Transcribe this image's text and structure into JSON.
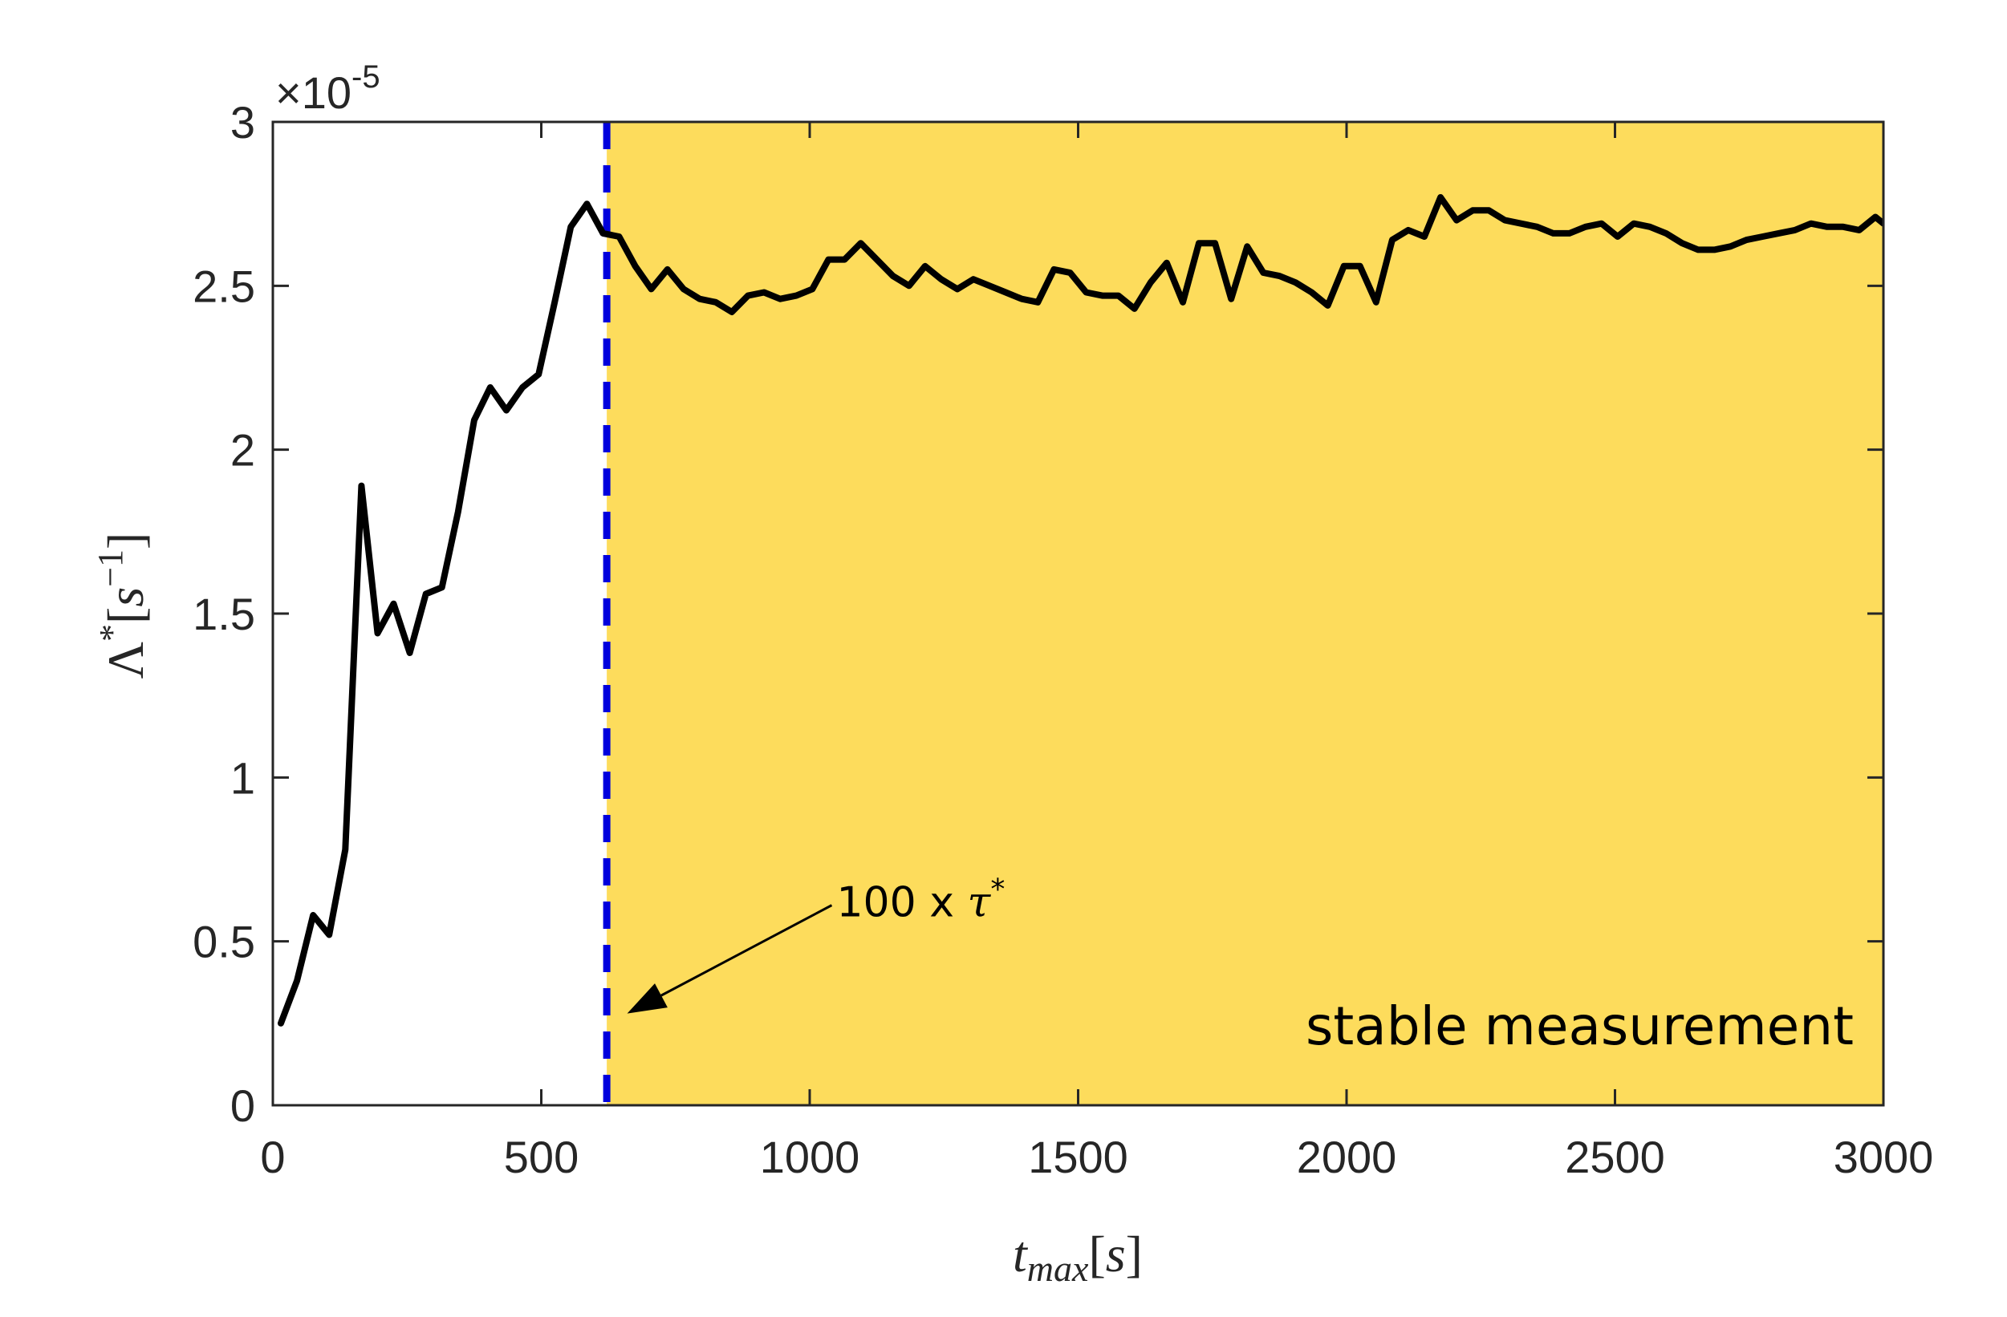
{
  "chart_data": {
    "type": "line",
    "title": "",
    "xlabel": "t_max[s]",
    "ylabel": "Λ*[s⁻¹]",
    "xlim": [
      0,
      3000
    ],
    "ylim": [
      0,
      3
    ],
    "y_multiplier_label": "×10",
    "y_multiplier_exponent": "-5",
    "x_ticks": [
      0,
      500,
      1000,
      1500,
      2000,
      2500,
      3000
    ],
    "x_tick_labels": [
      "0",
      "500",
      "1000",
      "1500",
      "2000",
      "2500",
      "3000"
    ],
    "y_ticks": [
      0,
      0.5,
      1,
      1.5,
      2,
      2.5,
      3
    ],
    "y_tick_labels": [
      "0",
      "0.5",
      "1",
      "1.5",
      "2",
      "2.5",
      "3"
    ],
    "grid": false,
    "shaded_region": {
      "x_start": 622,
      "x_end": 3000,
      "color": "#FDDC5C",
      "label": "stable measurement"
    },
    "vertical_line": {
      "x": 622,
      "color": "#0000DD",
      "style": "dashed"
    },
    "annotation": {
      "text_prefix": "100 x ",
      "text_symbol": "τ",
      "text_superscript": "*",
      "arrow_to_x": 660,
      "arrow_to_y": 0.28,
      "text_x": 1050,
      "text_y": 0.62
    },
    "series": [
      {
        "name": "Lambda",
        "color": "#000000",
        "x": [
          15,
          45,
          75,
          105,
          135,
          165,
          195,
          225,
          255,
          285,
          315,
          345,
          375,
          405,
          435,
          465,
          495,
          525,
          555,
          585,
          615,
          645,
          675,
          705,
          735,
          765,
          795,
          825,
          855,
          885,
          915,
          945,
          975,
          1005,
          1035,
          1065,
          1095,
          1125,
          1155,
          1185,
          1215,
          1245,
          1275,
          1305,
          1335,
          1365,
          1395,
          1425,
          1455,
          1485,
          1515,
          1545,
          1575,
          1605,
          1635,
          1665,
          1695,
          1725,
          1755,
          1785,
          1815,
          1845,
          1875,
          1905,
          1935,
          1965,
          1995,
          2025,
          2055,
          2085,
          2115,
          2145,
          2175,
          2205,
          2235,
          2265,
          2295,
          2325,
          2355,
          2385,
          2415,
          2445,
          2475,
          2505,
          2535,
          2565,
          2595,
          2625,
          2655,
          2685,
          2715,
          2745,
          2775,
          2805,
          2835,
          2865,
          2895,
          2925,
          2955,
          2985,
          3000
        ],
        "values": [
          0.25,
          0.38,
          0.58,
          0.52,
          0.78,
          1.89,
          1.44,
          1.53,
          1.38,
          1.56,
          1.58,
          1.81,
          2.09,
          2.19,
          2.12,
          2.19,
          2.23,
          2.45,
          2.68,
          2.75,
          2.66,
          2.65,
          2.56,
          2.49,
          2.55,
          2.49,
          2.46,
          2.45,
          2.42,
          2.47,
          2.48,
          2.46,
          2.47,
          2.49,
          2.58,
          2.58,
          2.63,
          2.58,
          2.53,
          2.5,
          2.56,
          2.52,
          2.49,
          2.52,
          2.5,
          2.48,
          2.46,
          2.45,
          2.55,
          2.54,
          2.48,
          2.47,
          2.47,
          2.43,
          2.51,
          2.57,
          2.45,
          2.63,
          2.63,
          2.46,
          2.62,
          2.54,
          2.53,
          2.51,
          2.48,
          2.44,
          2.56,
          2.56,
          2.45,
          2.64,
          2.67,
          2.65,
          2.77,
          2.7,
          2.73,
          2.73,
          2.7,
          2.69,
          2.68,
          2.66,
          2.66,
          2.68,
          2.69,
          2.65,
          2.69,
          2.68,
          2.66,
          2.63,
          2.61,
          2.61,
          2.62,
          2.64,
          2.65,
          2.66,
          2.67,
          2.69,
          2.68,
          2.68,
          2.67,
          2.71,
          2.69
        ]
      }
    ]
  }
}
